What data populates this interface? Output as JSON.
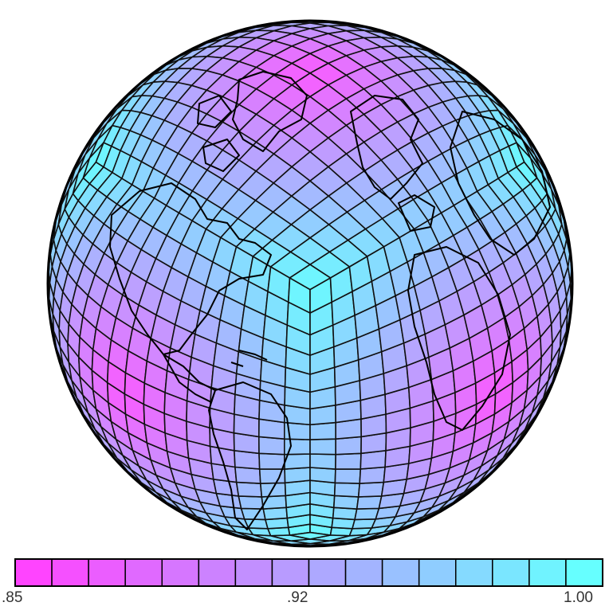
{
  "colorbar": {
    "min_label": ".85",
    "mid_label": ".92",
    "max_label": "1.00",
    "min_value": 0.85,
    "max_value": 1.0,
    "bins": 16,
    "color_low": "#ff44ff",
    "color_high": "#66ffff"
  },
  "globe": {
    "grid": "cubed-sphere",
    "cells_per_face_edge": 16,
    "face_center_color": "#ff55ff",
    "face_corner_color": "#66ffff",
    "grid_line_color": "#111111",
    "coastline_color": "#000000"
  }
}
